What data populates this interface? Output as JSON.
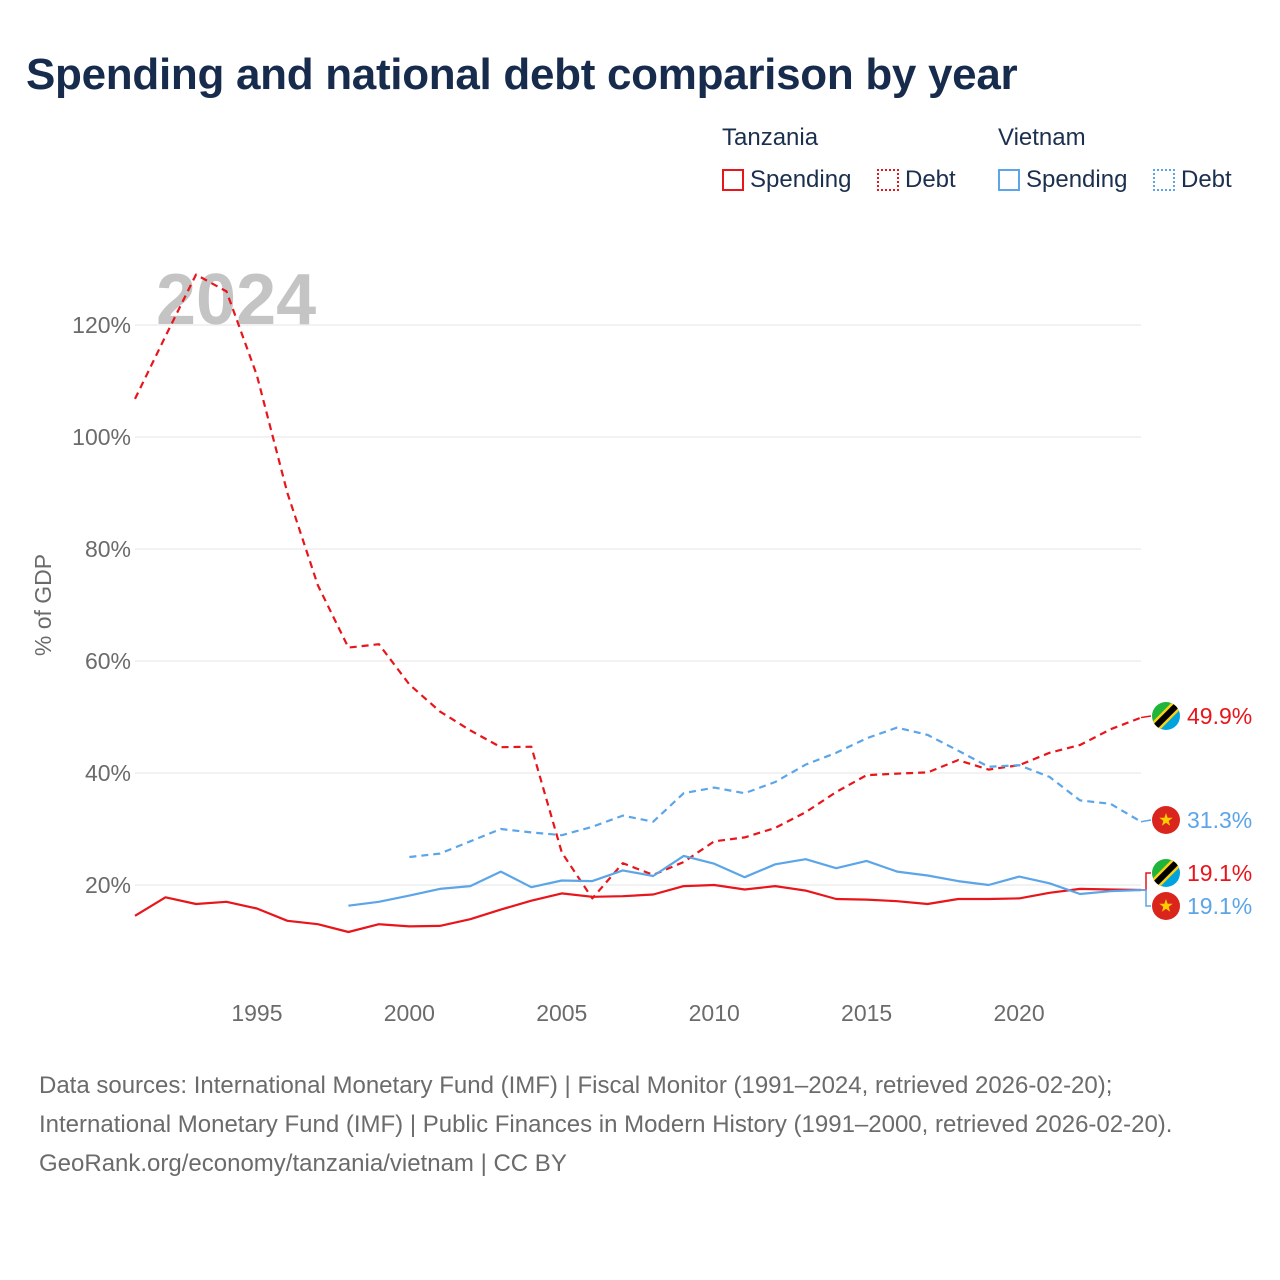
{
  "title": "Spending and national debt comparison by year",
  "year_watermark": "2024",
  "legend": {
    "groups": [
      {
        "name": "Tanzania",
        "items": [
          {
            "label": "Spending",
            "style": "solid"
          },
          {
            "label": "Debt",
            "style": "dotted"
          }
        ]
      },
      {
        "name": "Vietnam",
        "items": [
          {
            "label": "Spending",
            "style": "solid"
          },
          {
            "label": "Debt",
            "style": "dotted"
          }
        ]
      }
    ]
  },
  "colors": {
    "tanzania": "#e8151b",
    "vietnam": "#5ba5e8",
    "grid": "#e6e6e6",
    "axis_text": "#6b6b6b",
    "watermark": "#c4c4c4"
  },
  "footer": {
    "sources": "Data sources: International Monetary Fund (IMF) | Fiscal Monitor (1991–2024, retrieved 2026-02-20); International Monetary Fund (IMF) | Public Finances in Modern History (1991–2000, retrieved 2026-02-20).",
    "credit": "GeoRank.org/economy/tanzania/vietnam | CC BY"
  },
  "chart_data": {
    "type": "line",
    "title": "Spending and national debt comparison by year",
    "xlabel": "",
    "ylabel": "% of GDP",
    "xlim": [
      1991,
      2024
    ],
    "ylim": [
      0,
      130
    ],
    "x_ticks": [
      1995,
      2000,
      2005,
      2010,
      2015,
      2020
    ],
    "y_ticks": [
      20,
      40,
      60,
      80,
      100,
      120
    ],
    "y_tick_labels": [
      "20%",
      "40%",
      "60%",
      "80%",
      "100%",
      "120%"
    ],
    "grid": true,
    "series": [
      {
        "name": "Tanzania Spending",
        "country": "tanzania",
        "style": "solid",
        "x": [
          1991,
          1992,
          1993,
          1994,
          1995,
          1996,
          1997,
          1998,
          1999,
          2000,
          2001,
          2002,
          2003,
          2004,
          2005,
          2006,
          2007,
          2008,
          2009,
          2010,
          2011,
          2012,
          2013,
          2014,
          2015,
          2016,
          2017,
          2018,
          2019,
          2020,
          2021,
          2022,
          2023,
          2024
        ],
        "values": [
          14.5,
          17.8,
          16.6,
          17.0,
          15.8,
          13.6,
          13.0,
          11.6,
          13.0,
          12.6,
          12.7,
          13.9,
          15.6,
          17.2,
          18.5,
          17.9,
          18.0,
          18.3,
          19.8,
          20.0,
          19.2,
          19.8,
          19.0,
          17.5,
          17.4,
          17.1,
          16.6,
          17.5,
          17.5,
          17.6,
          18.6,
          19.3,
          19.2,
          19.1
        ],
        "end_label": "19.1%"
      },
      {
        "name": "Tanzania Debt",
        "country": "tanzania",
        "style": "dashed",
        "x": [
          1991,
          1992,
          1993,
          1994,
          1995,
          1996,
          1997,
          1998,
          1999,
          2000,
          2001,
          2002,
          2003,
          2004,
          2005,
          2006,
          2007,
          2008,
          2009,
          2010,
          2011,
          2012,
          2013,
          2014,
          2015,
          2016,
          2017,
          2018,
          2019,
          2020,
          2021,
          2022,
          2023,
          2024
        ],
        "values": [
          106.8,
          118.0,
          129.0,
          126.0,
          111.0,
          90.0,
          73.5,
          62.4,
          63.0,
          55.8,
          51.0,
          47.6,
          44.6,
          44.7,
          25.8,
          17.6,
          23.9,
          21.8,
          24.1,
          27.8,
          28.5,
          30.2,
          33.0,
          36.6,
          39.6,
          39.9,
          40.1,
          42.3,
          40.6,
          41.4,
          43.6,
          45.0,
          47.8,
          49.9
        ],
        "end_label": "49.9%"
      },
      {
        "name": "Vietnam Spending",
        "country": "vietnam",
        "style": "solid",
        "x": [
          1998,
          1999,
          2000,
          2001,
          2002,
          2003,
          2004,
          2005,
          2006,
          2007,
          2008,
          2009,
          2010,
          2011,
          2012,
          2013,
          2014,
          2015,
          2016,
          2017,
          2018,
          2019,
          2020,
          2021,
          2022,
          2023,
          2024
        ],
        "values": [
          16.3,
          17.0,
          18.1,
          19.3,
          19.8,
          22.4,
          19.6,
          20.8,
          20.7,
          22.6,
          21.6,
          25.2,
          23.8,
          21.4,
          23.7,
          24.6,
          23.0,
          24.3,
          22.4,
          21.7,
          20.7,
          20.0,
          21.5,
          20.3,
          18.4,
          18.9,
          19.1
        ],
        "end_label": "19.1%"
      },
      {
        "name": "Vietnam Debt",
        "country": "vietnam",
        "style": "dashed",
        "x": [
          2000,
          2001,
          2002,
          2003,
          2004,
          2005,
          2006,
          2007,
          2008,
          2009,
          2010,
          2011,
          2012,
          2013,
          2014,
          2015,
          2016,
          2017,
          2018,
          2019,
          2020,
          2021,
          2022,
          2023,
          2024
        ],
        "values": [
          25.0,
          25.6,
          27.8,
          30.0,
          29.4,
          28.9,
          30.4,
          32.4,
          31.3,
          36.4,
          37.4,
          36.4,
          38.4,
          41.5,
          43.6,
          46.2,
          48.1,
          46.8,
          44.0,
          41.1,
          41.4,
          39.3,
          35.1,
          34.5,
          31.3
        ],
        "end_label": "31.3%"
      }
    ]
  }
}
